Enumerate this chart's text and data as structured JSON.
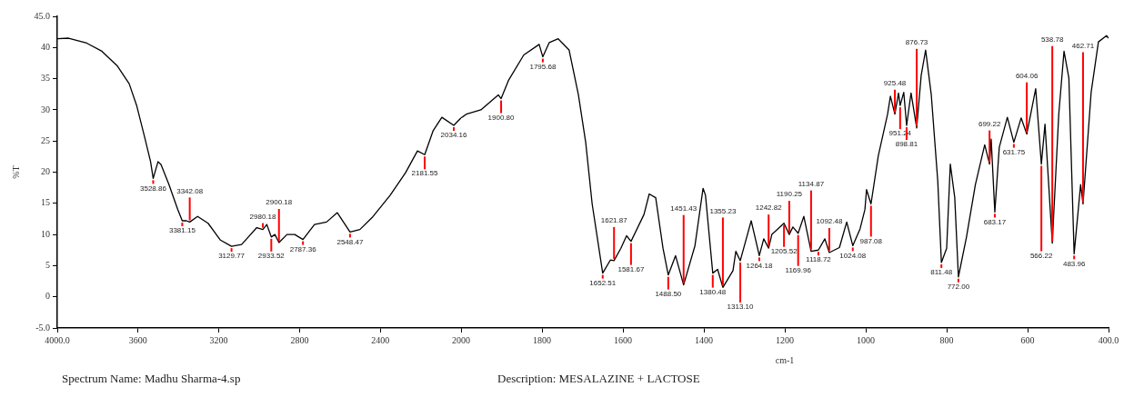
{
  "chart_data": [
    {
      "type": "line",
      "ylabel": "%T",
      "xlim": [
        4000,
        2000
      ],
      "xticks": [
        {
          "value": 4000,
          "label": "4000.0"
        },
        3600,
        3200,
        2800,
        2400,
        2000
      ],
      "ylim": [
        -5,
        45
      ],
      "yticks": [
        {
          "value": -5,
          "label": "-5.0"
        },
        0,
        5,
        10,
        15,
        20,
        25,
        30,
        35,
        40,
        {
          "value": 45,
          "label": "45.0"
        }
      ],
      "marker": "none",
      "x": [
        4000,
        3944,
        3854,
        3779,
        3704,
        3644,
        3606,
        3568,
        3538,
        3525,
        3501,
        3486,
        3448,
        3403,
        3381,
        3361,
        3344,
        3305,
        3253,
        3192,
        3137,
        3087,
        3012,
        2982,
        2962,
        2940,
        2922,
        2902,
        2862,
        2824,
        2783,
        2726,
        2666,
        2613,
        2550,
        2501,
        2441,
        2351,
        2275,
        2216,
        2180,
        2139,
        2095,
        2036,
        2000
      ],
      "series": [
        {
          "color": "#000000",
          "values": [
            41.4,
            41.5,
            40.7,
            39.4,
            37.1,
            34.2,
            30.6,
            25.7,
            21.7,
            19.0,
            21.7,
            21.2,
            18.1,
            14.0,
            12.2,
            12.2,
            12.0,
            12.9,
            11.8,
            9.1,
            8.1,
            8.4,
            11.1,
            10.8,
            11.6,
            9.6,
            10.0,
            8.7,
            10.0,
            10.0,
            9.2,
            11.6,
            12.0,
            13.5,
            10.4,
            10.8,
            12.7,
            16.3,
            19.9,
            23.4,
            22.8,
            26.6,
            28.8,
            27.5,
            28.7
          ]
        }
      ],
      "annotations": [
        {
          "text": "3528.86",
          "x": 3525,
          "y": 19.0
        },
        {
          "text": "3381.15",
          "x": 3381,
          "y": 12.2
        },
        {
          "text": "3342.08",
          "x": 3344,
          "y": 12.0
        },
        {
          "text": "3129.77",
          "x": 3137,
          "y": 8.1
        },
        {
          "text": "2980.18",
          "x": 2982,
          "y": 10.8
        },
        {
          "text": "2933.52",
          "x": 2940,
          "y": 9.6
        },
        {
          "text": "2900.18",
          "x": 2902,
          "y": 8.7
        },
        {
          "text": "2787.36",
          "x": 2783,
          "y": 9.2
        },
        {
          "text": "2548.47",
          "x": 2550,
          "y": 10.4
        },
        {
          "text": "2181.55",
          "x": 2180,
          "y": 22.8
        },
        {
          "text": "2034.16",
          "x": 2036,
          "y": 27.5
        },
        "Spectrum Name: Madhu Sharma-4.sp"
      ]
    },
    {
      "type": "line",
      "xlabel": "cm-1",
      "tick_labels": "x",
      "xlim": [
        2000,
        400
      ],
      "xticks": [
        1800,
        1600,
        1400,
        1200,
        1000,
        800,
        600,
        {
          "value": 400,
          "label": "400.0"
        }
      ],
      "ylim": [
        -5,
        45
      ],
      "marker": "none",
      "x": [
        2000,
        1987,
        1951,
        1908,
        1901,
        1883,
        1845,
        1807,
        1798,
        1782,
        1760,
        1733,
        1710,
        1692,
        1676,
        1650,
        1631,
        1622,
        1605,
        1591,
        1580,
        1548,
        1535,
        1519,
        1501,
        1488,
        1470,
        1450,
        1422,
        1402,
        1396,
        1378,
        1366,
        1353,
        1328,
        1321,
        1310,
        1283,
        1263,
        1252,
        1240,
        1232,
        1202,
        1189,
        1180,
        1167,
        1153,
        1135,
        1117,
        1101,
        1090,
        1065,
        1047,
        1032,
        1014,
        1002,
        998,
        987,
        969,
        946,
        939,
        928,
        919,
        915,
        906,
        899,
        888,
        874,
        863,
        852,
        838,
        822,
        813,
        800,
        791,
        780,
        771,
        751,
        729,
        706,
        694,
        690,
        681,
        670,
        650,
        634,
        616,
        602,
        580,
        566,
        557,
        539,
        523,
        510,
        498,
        485,
        469,
        463,
        443,
        425,
        405,
        400
      ],
      "series": [
        {
          "color": "#000000",
          "values": [
            28.7,
            29.3,
            30.0,
            32.4,
            31.8,
            34.7,
            38.8,
            40.5,
            38.5,
            40.8,
            41.4,
            39.6,
            32.4,
            24.8,
            14.9,
            3.8,
            5.9,
            5.8,
            7.8,
            9.8,
            8.9,
            13.2,
            16.5,
            15.9,
            7.8,
            3.5,
            6.6,
            1.9,
            8.2,
            17.4,
            16.3,
            3.8,
            4.4,
            1.5,
            4.2,
            7.3,
            5.8,
            12.2,
            6.6,
            9.3,
            7.8,
            10.0,
            11.8,
            10.0,
            11.2,
            10.2,
            12.9,
            7.3,
            7.5,
            9.3,
            7.1,
            7.9,
            12.0,
            8.2,
            10.9,
            14.0,
            17.2,
            14.9,
            22.6,
            29.3,
            32.2,
            29.3,
            32.7,
            30.7,
            32.8,
            27.5,
            32.7,
            27.1,
            35.5,
            39.6,
            32.4,
            18.6,
            5.5,
            7.8,
            21.3,
            15.9,
            3.2,
            9.6,
            18.0,
            24.4,
            21.3,
            25.3,
            13.6,
            24.0,
            28.8,
            24.8,
            28.7,
            26.1,
            33.4,
            21.3,
            27.7,
            8.6,
            29.3,
            39.4,
            35.1,
            6.9,
            18.0,
            14.9,
            32.8,
            40.9,
            41.9,
            41.5
          ]
        }
      ],
      "annotations": [
        {
          "text": "1900.80",
          "x": 1901,
          "y": 31.8
        },
        {
          "text": "1795.68",
          "x": 1798,
          "y": 38.5
        },
        {
          "text": "1652.51",
          "x": 1650,
          "y": 3.8
        },
        {
          "text": "1621.87",
          "x": 1622,
          "y": 5.8
        },
        {
          "text": "1581.67",
          "x": 1580,
          "y": 8.9
        },
        {
          "text": "1488.50",
          "x": 1488,
          "y": 3.5
        },
        {
          "text": "1451.43",
          "x": 1450,
          "y": 1.9
        },
        {
          "text": "1380.48",
          "x": 1378,
          "y": 3.8
        },
        {
          "text": "1355.23",
          "x": 1353,
          "y": 1.5
        },
        {
          "text": "1313.10",
          "x": 1310,
          "y": 5.8
        },
        {
          "text": "1264.18",
          "x": 1263,
          "y": 6.6
        },
        {
          "text": "1242.82",
          "x": 1240,
          "y": 7.8
        },
        {
          "text": "1205.52",
          "x": 1202,
          "y": 11.8
        },
        {
          "text": "1190.25",
          "x": 1189,
          "y": 10.0
        },
        {
          "text": "1169.96",
          "x": 1167,
          "y": 10.2
        },
        {
          "text": "1134.87",
          "x": 1135,
          "y": 7.3
        },
        {
          "text": "1118.72",
          "x": 1117,
          "y": 7.5
        },
        {
          "text": "1092.48",
          "x": 1090,
          "y": 7.1
        },
        {
          "text": "1024.08",
          "x": 1032,
          "y": 8.2
        },
        {
          "text": "987.08",
          "x": 987,
          "y": 14.9
        },
        {
          "text": "925.48",
          "x": 928,
          "y": 29.3
        },
        {
          "text": "951.24",
          "x": 915,
          "y": 30.7
        },
        {
          "text": "898.81",
          "x": 899,
          "y": 27.5
        },
        {
          "text": "876.73",
          "x": 874,
          "y": 27.1
        },
        {
          "text": "811.48",
          "x": 813,
          "y": 5.5
        },
        {
          "text": "772.00",
          "x": 771,
          "y": 3.2
        },
        {
          "text": "699.22",
          "x": 694,
          "y": 21.3
        },
        {
          "text": "683.17",
          "x": 681,
          "y": 13.6
        },
        {
          "text": "631.75",
          "x": 634,
          "y": 24.8
        },
        {
          "text": "604.06",
          "x": 602,
          "y": 26.1
        },
        {
          "text": "566.22",
          "x": 566,
          "y": 21.3
        },
        {
          "text": "538.78",
          "x": 539,
          "y": 8.6
        },
        {
          "text": "483.96",
          "x": 485,
          "y": 6.9
        },
        {
          "text": "462.71",
          "x": 463,
          "y": 14.9
        },
        "Description: MESALAZINE + LACTOSE"
      ]
    }
  ]
}
